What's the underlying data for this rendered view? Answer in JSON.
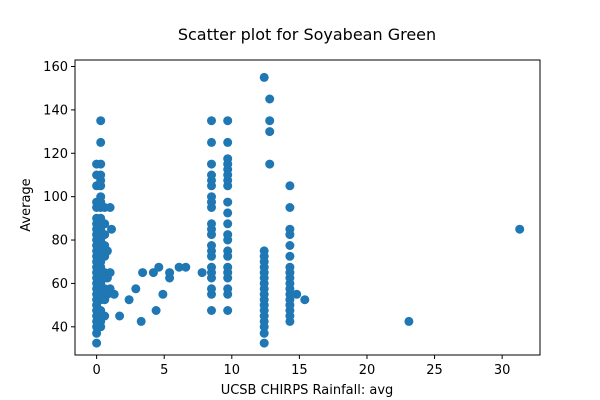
{
  "chart_data": {
    "type": "scatter",
    "title": "Scatter plot for Soyabean Green",
    "xlabel": "UCSB CHIRPS Rainfall: avg",
    "ylabel": "Average",
    "xlim": [
      -1.6,
      32.8
    ],
    "ylim": [
      27,
      163
    ],
    "xticks": [
      0,
      5,
      10,
      15,
      20,
      25,
      30
    ],
    "yticks": [
      40,
      60,
      80,
      100,
      120,
      140,
      160
    ],
    "grid": false,
    "legend": "none",
    "color": "#1f77b4",
    "points": [
      {
        "x": 0,
        "y": 32.5
      },
      {
        "x": 0,
        "y": 37
      },
      {
        "x": 0,
        "y": 40
      },
      {
        "x": 0,
        "y": 42.5
      },
      {
        "x": 0,
        "y": 45
      },
      {
        "x": 0,
        "y": 47.5
      },
      {
        "x": 0,
        "y": 50
      },
      {
        "x": 0,
        "y": 52.5
      },
      {
        "x": 0,
        "y": 55
      },
      {
        "x": 0,
        "y": 57.5
      },
      {
        "x": 0,
        "y": 60
      },
      {
        "x": 0,
        "y": 62.5
      },
      {
        "x": 0,
        "y": 65
      },
      {
        "x": 0,
        "y": 67.5
      },
      {
        "x": 0,
        "y": 70
      },
      {
        "x": 0,
        "y": 72.5
      },
      {
        "x": 0,
        "y": 75
      },
      {
        "x": 0,
        "y": 77.5
      },
      {
        "x": 0,
        "y": 80
      },
      {
        "x": 0,
        "y": 82.5
      },
      {
        "x": 0,
        "y": 85
      },
      {
        "x": 0,
        "y": 87.5
      },
      {
        "x": 0,
        "y": 90
      },
      {
        "x": 0,
        "y": 95
      },
      {
        "x": 0,
        "y": 97.5
      },
      {
        "x": 0,
        "y": 105
      },
      {
        "x": 0,
        "y": 110
      },
      {
        "x": 0,
        "y": 115
      },
      {
        "x": 0.3,
        "y": 40
      },
      {
        "x": 0.3,
        "y": 42.5
      },
      {
        "x": 0.3,
        "y": 47.5
      },
      {
        "x": 0.3,
        "y": 52.5
      },
      {
        "x": 0.3,
        "y": 55
      },
      {
        "x": 0.3,
        "y": 57.5
      },
      {
        "x": 0.3,
        "y": 60
      },
      {
        "x": 0.3,
        "y": 62.5
      },
      {
        "x": 0.3,
        "y": 65
      },
      {
        "x": 0.3,
        "y": 67.5
      },
      {
        "x": 0.3,
        "y": 70
      },
      {
        "x": 0.3,
        "y": 72.5
      },
      {
        "x": 0.3,
        "y": 75
      },
      {
        "x": 0.3,
        "y": 77.5
      },
      {
        "x": 0.3,
        "y": 80
      },
      {
        "x": 0.3,
        "y": 82.5
      },
      {
        "x": 0.3,
        "y": 85
      },
      {
        "x": 0.3,
        "y": 87.5
      },
      {
        "x": 0.3,
        "y": 90
      },
      {
        "x": 0.3,
        "y": 95
      },
      {
        "x": 0.3,
        "y": 97.5
      },
      {
        "x": 0.3,
        "y": 100
      },
      {
        "x": 0.3,
        "y": 105
      },
      {
        "x": 0.3,
        "y": 107.5
      },
      {
        "x": 0.3,
        "y": 110
      },
      {
        "x": 0.3,
        "y": 115
      },
      {
        "x": 0.3,
        "y": 125
      },
      {
        "x": 0.3,
        "y": 135
      },
      {
        "x": 0.6,
        "y": 45
      },
      {
        "x": 0.6,
        "y": 52.5
      },
      {
        "x": 0.6,
        "y": 57.5
      },
      {
        "x": 0.6,
        "y": 62.5
      },
      {
        "x": 0.6,
        "y": 65
      },
      {
        "x": 0.6,
        "y": 72.5
      },
      {
        "x": 0.6,
        "y": 77.5
      },
      {
        "x": 0.6,
        "y": 82.5
      },
      {
        "x": 0.6,
        "y": 87.5
      },
      {
        "x": 0.6,
        "y": 95
      },
      {
        "x": 0.8,
        "y": 55
      },
      {
        "x": 0.8,
        "y": 62.5
      },
      {
        "x": 0.8,
        "y": 75
      },
      {
        "x": 1.0,
        "y": 65
      },
      {
        "x": 1.0,
        "y": 57.5
      },
      {
        "x": 1.0,
        "y": 95
      },
      {
        "x": 1.1,
        "y": 85
      },
      {
        "x": 1.3,
        "y": 55
      },
      {
        "x": 1.7,
        "y": 45
      },
      {
        "x": 2.4,
        "y": 52.5
      },
      {
        "x": 2.9,
        "y": 57.5
      },
      {
        "x": 3.4,
        "y": 65
      },
      {
        "x": 3.3,
        "y": 42.5
      },
      {
        "x": 4.2,
        "y": 65
      },
      {
        "x": 4.4,
        "y": 47.5
      },
      {
        "x": 4.6,
        "y": 67.5
      },
      {
        "x": 4.9,
        "y": 55
      },
      {
        "x": 5.4,
        "y": 65
      },
      {
        "x": 5.4,
        "y": 62.5
      },
      {
        "x": 6.1,
        "y": 67.5
      },
      {
        "x": 6.6,
        "y": 67.5
      },
      {
        "x": 7.8,
        "y": 65
      },
      {
        "x": 8.5,
        "y": 47.5
      },
      {
        "x": 8.5,
        "y": 55
      },
      {
        "x": 8.5,
        "y": 57.5
      },
      {
        "x": 8.5,
        "y": 62.5
      },
      {
        "x": 8.5,
        "y": 65
      },
      {
        "x": 8.5,
        "y": 67.5
      },
      {
        "x": 8.5,
        "y": 72.5
      },
      {
        "x": 8.5,
        "y": 75
      },
      {
        "x": 8.5,
        "y": 77.5
      },
      {
        "x": 8.5,
        "y": 82.5
      },
      {
        "x": 8.5,
        "y": 85
      },
      {
        "x": 8.5,
        "y": 87.5
      },
      {
        "x": 8.5,
        "y": 95
      },
      {
        "x": 8.5,
        "y": 97.5
      },
      {
        "x": 8.5,
        "y": 100
      },
      {
        "x": 8.5,
        "y": 105
      },
      {
        "x": 8.5,
        "y": 107.5
      },
      {
        "x": 8.5,
        "y": 110
      },
      {
        "x": 8.5,
        "y": 115
      },
      {
        "x": 8.5,
        "y": 125
      },
      {
        "x": 8.5,
        "y": 135
      },
      {
        "x": 9.7,
        "y": 47.5
      },
      {
        "x": 9.7,
        "y": 55
      },
      {
        "x": 9.7,
        "y": 57.5
      },
      {
        "x": 9.7,
        "y": 62.5
      },
      {
        "x": 9.7,
        "y": 65
      },
      {
        "x": 9.7,
        "y": 67.5
      },
      {
        "x": 9.7,
        "y": 72.5
      },
      {
        "x": 9.7,
        "y": 75
      },
      {
        "x": 9.7,
        "y": 80
      },
      {
        "x": 9.7,
        "y": 82.5
      },
      {
        "x": 9.7,
        "y": 87.5
      },
      {
        "x": 9.7,
        "y": 92.5
      },
      {
        "x": 9.7,
        "y": 97.5
      },
      {
        "x": 9.7,
        "y": 105
      },
      {
        "x": 9.7,
        "y": 107.5
      },
      {
        "x": 9.7,
        "y": 110
      },
      {
        "x": 9.7,
        "y": 112.5
      },
      {
        "x": 9.7,
        "y": 115
      },
      {
        "x": 9.7,
        "y": 117.5
      },
      {
        "x": 9.7,
        "y": 125
      },
      {
        "x": 9.7,
        "y": 135
      },
      {
        "x": 12.4,
        "y": 32.5
      },
      {
        "x": 12.4,
        "y": 37
      },
      {
        "x": 12.4,
        "y": 40
      },
      {
        "x": 12.4,
        "y": 42.5
      },
      {
        "x": 12.4,
        "y": 45
      },
      {
        "x": 12.4,
        "y": 47.5
      },
      {
        "x": 12.4,
        "y": 50
      },
      {
        "x": 12.4,
        "y": 52.5
      },
      {
        "x": 12.4,
        "y": 55
      },
      {
        "x": 12.4,
        "y": 57.5
      },
      {
        "x": 12.4,
        "y": 60
      },
      {
        "x": 12.4,
        "y": 62.5
      },
      {
        "x": 12.4,
        "y": 65
      },
      {
        "x": 12.4,
        "y": 67.5
      },
      {
        "x": 12.4,
        "y": 70
      },
      {
        "x": 12.4,
        "y": 72.5
      },
      {
        "x": 12.4,
        "y": 75
      },
      {
        "x": 12.4,
        "y": 155
      },
      {
        "x": 12.8,
        "y": 145
      },
      {
        "x": 12.8,
        "y": 135
      },
      {
        "x": 12.8,
        "y": 130
      },
      {
        "x": 12.8,
        "y": 115
      },
      {
        "x": 14.3,
        "y": 42.5
      },
      {
        "x": 14.3,
        "y": 45
      },
      {
        "x": 14.3,
        "y": 47.5
      },
      {
        "x": 14.3,
        "y": 50
      },
      {
        "x": 14.3,
        "y": 52.5
      },
      {
        "x": 14.3,
        "y": 55
      },
      {
        "x": 14.3,
        "y": 57.5
      },
      {
        "x": 14.3,
        "y": 60
      },
      {
        "x": 14.3,
        "y": 62.5
      },
      {
        "x": 14.3,
        "y": 65
      },
      {
        "x": 14.3,
        "y": 67.5
      },
      {
        "x": 14.3,
        "y": 72.5
      },
      {
        "x": 14.3,
        "y": 77.5
      },
      {
        "x": 14.3,
        "y": 82.5
      },
      {
        "x": 14.3,
        "y": 85
      },
      {
        "x": 14.3,
        "y": 95
      },
      {
        "x": 14.3,
        "y": 105
      },
      {
        "x": 14.8,
        "y": 55
      },
      {
        "x": 15.4,
        "y": 52.5
      },
      {
        "x": 23.1,
        "y": 42.5
      },
      {
        "x": 31.3,
        "y": 85
      }
    ]
  }
}
